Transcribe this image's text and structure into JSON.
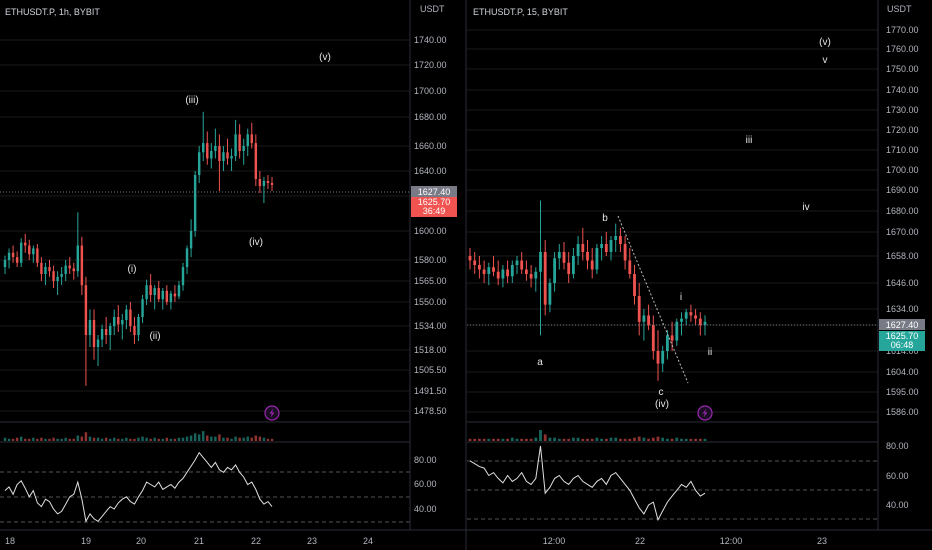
{
  "theme": {
    "background": "#000000",
    "grid": "#1a1a1a",
    "axis_text": "#b2b5be",
    "label_text": "#e6e6e6",
    "up": "#26a69a",
    "down": "#ef5350",
    "price_line": "#787b86",
    "last_price_bg": "#787b86",
    "current_price_bg_left": "#f05350",
    "current_price_bg_right": "#26a69a",
    "rsi_line": "#e0e0e0",
    "replay_icon": "#9c27b0"
  },
  "chart_data": [
    {
      "type": "candlestick",
      "symbol": "ETHUSDT.P, 1h, BYBIT",
      "currency": "USDT",
      "yticks": [
        "1740.00",
        "1720.00",
        "1700.00",
        "1680.00",
        "1660.00",
        "1640.00",
        "1615.00",
        "1600.00",
        "1580.00",
        "1565.00",
        "1550.00",
        "1534.00",
        "1518.00",
        "1505.50",
        "1491.50",
        "1478.50"
      ],
      "xticks": [
        "18",
        "19",
        "20",
        "21",
        "22",
        "23",
        "24"
      ],
      "last_price": "1627.40",
      "current_price": "1625.70",
      "countdown": "36:49",
      "wave_labels": [
        "(v)",
        "(iii)",
        "(i)",
        "(ii)",
        "(iv)"
      ],
      "rsi_ticks": [
        "80.00",
        "60.00",
        "40.00"
      ],
      "ohlc": [
        [
          1575,
          1583,
          1570,
          1580
        ],
        [
          1580,
          1588,
          1574,
          1585
        ],
        [
          1585,
          1590,
          1578,
          1582
        ],
        [
          1582,
          1586,
          1575,
          1578
        ],
        [
          1578,
          1595,
          1575,
          1592
        ],
        [
          1592,
          1598,
          1585,
          1590
        ],
        [
          1590,
          1594,
          1580,
          1584
        ],
        [
          1584,
          1590,
          1578,
          1588
        ],
        [
          1588,
          1591,
          1575,
          1578
        ],
        [
          1578,
          1582,
          1565,
          1570
        ],
        [
          1570,
          1578,
          1562,
          1575
        ],
        [
          1575,
          1580,
          1568,
          1572
        ],
        [
          1572,
          1576,
          1560,
          1565
        ],
        [
          1565,
          1572,
          1555,
          1568
        ],
        [
          1568,
          1575,
          1562,
          1570
        ],
        [
          1570,
          1580,
          1565,
          1576
        ],
        [
          1576,
          1582,
          1570,
          1574
        ],
        [
          1574,
          1578,
          1566,
          1572
        ],
        [
          1572,
          1608,
          1568,
          1590
        ],
        [
          1590,
          1596,
          1555,
          1562
        ],
        [
          1562,
          1568,
          1495,
          1528
        ],
        [
          1528,
          1545,
          1520,
          1538
        ],
        [
          1538,
          1545,
          1512,
          1520
        ],
        [
          1520,
          1528,
          1508,
          1525
        ],
        [
          1525,
          1535,
          1520,
          1532
        ],
        [
          1532,
          1540,
          1522,
          1528
        ],
        [
          1528,
          1536,
          1518,
          1534
        ],
        [
          1534,
          1545,
          1528,
          1540
        ],
        [
          1540,
          1548,
          1530,
          1535
        ],
        [
          1535,
          1542,
          1525,
          1538
        ],
        [
          1538,
          1548,
          1532,
          1545
        ],
        [
          1545,
          1550,
          1530,
          1534
        ],
        [
          1534,
          1540,
          1522,
          1528
        ],
        [
          1528,
          1542,
          1524,
          1540
        ],
        [
          1540,
          1555,
          1536,
          1552
        ],
        [
          1552,
          1566,
          1548,
          1562
        ],
        [
          1562,
          1570,
          1550,
          1555
        ],
        [
          1555,
          1562,
          1545,
          1560
        ],
        [
          1560,
          1565,
          1550,
          1552
        ],
        [
          1552,
          1560,
          1545,
          1558
        ],
        [
          1558,
          1562,
          1548,
          1550
        ],
        [
          1550,
          1558,
          1545,
          1556
        ],
        [
          1556,
          1562,
          1550,
          1554
        ],
        [
          1554,
          1565,
          1552,
          1562
        ],
        [
          1562,
          1578,
          1558,
          1575
        ],
        [
          1575,
          1590,
          1570,
          1588
        ],
        [
          1588,
          1605,
          1582,
          1600
        ],
        [
          1600,
          1640,
          1596,
          1636
        ],
        [
          1636,
          1660,
          1628,
          1655
        ],
        [
          1655,
          1684,
          1648,
          1662
        ],
        [
          1662,
          1670,
          1645,
          1650
        ],
        [
          1650,
          1662,
          1642,
          1656
        ],
        [
          1656,
          1672,
          1650,
          1660
        ],
        [
          1660,
          1668,
          1620,
          1648
        ],
        [
          1648,
          1660,
          1640,
          1655
        ],
        [
          1655,
          1665,
          1645,
          1650
        ],
        [
          1650,
          1658,
          1640,
          1652
        ],
        [
          1652,
          1678,
          1648,
          1668
        ],
        [
          1668,
          1675,
          1650,
          1656
        ],
        [
          1656,
          1665,
          1645,
          1660
        ],
        [
          1660,
          1672,
          1652,
          1668
        ],
        [
          1668,
          1676,
          1658,
          1662
        ],
        [
          1662,
          1668,
          1625,
          1632
        ],
        [
          1632,
          1640,
          1618,
          1625
        ],
        [
          1625,
          1634,
          1612,
          1630
        ],
        [
          1630,
          1636,
          1622,
          1628
        ],
        [
          1628,
          1634,
          1620,
          1626
        ]
      ],
      "rsi": [
        55,
        58,
        52,
        60,
        63,
        57,
        50,
        55,
        45,
        42,
        48,
        46,
        40,
        36,
        38,
        44,
        50,
        52,
        62,
        48,
        30,
        36,
        32,
        30,
        34,
        38,
        42,
        40,
        45,
        48,
        50,
        46,
        44,
        50,
        55,
        62,
        60,
        58,
        62,
        56,
        58,
        60,
        57,
        62,
        65,
        70,
        75,
        80,
        86,
        82,
        78,
        74,
        78,
        72,
        70,
        74,
        72,
        76,
        70,
        66,
        60,
        62,
        56,
        48,
        44,
        46,
        42
      ],
      "volume": [
        3,
        2,
        2,
        3,
        4,
        2,
        2,
        3,
        2,
        3,
        2,
        2,
        3,
        2,
        2,
        3,
        2,
        2,
        5,
        4,
        8,
        4,
        3,
        3,
        2,
        3,
        2,
        3,
        2,
        2,
        3,
        2,
        2,
        3,
        4,
        3,
        2,
        3,
        2,
        2,
        3,
        2,
        2,
        3,
        3,
        4,
        5,
        7,
        6,
        9,
        5,
        4,
        4,
        6,
        3,
        3,
        2,
        4,
        3,
        3,
        4,
        3,
        5,
        4,
        3,
        2,
        2
      ]
    },
    {
      "type": "candlestick",
      "symbol": "ETHUSDT.P, 15, BYBIT",
      "currency": "USDT",
      "yticks": [
        "1770.00",
        "1760.00",
        "1750.00",
        "1740.00",
        "1730.00",
        "1720.00",
        "1710.00",
        "1700.00",
        "1690.00",
        "1680.00",
        "1670.00",
        "1658.00",
        "1646.00",
        "1634.00",
        "1624.00",
        "1614.00",
        "1604.00",
        "1595.00",
        "1586.00"
      ],
      "xticks": [
        "12:00",
        "22",
        "12:00",
        "23"
      ],
      "last_price": "1627.40",
      "current_price": "1625.70",
      "countdown": "06:48",
      "wave_labels": [
        "(v)",
        "v",
        "iii",
        "iv",
        "b",
        "i",
        "a",
        "ii",
        "c",
        "(iv)"
      ],
      "rsi_ticks": [
        "80.00",
        "60.00",
        "40.00"
      ],
      "ohlc": [
        [
          1658,
          1662,
          1652,
          1656
        ],
        [
          1656,
          1660,
          1650,
          1654
        ],
        [
          1654,
          1658,
          1648,
          1652
        ],
        [
          1652,
          1656,
          1646,
          1650
        ],
        [
          1650,
          1655,
          1645,
          1653
        ],
        [
          1653,
          1658,
          1649,
          1651
        ],
        [
          1651,
          1656,
          1645,
          1648
        ],
        [
          1648,
          1654,
          1644,
          1652
        ],
        [
          1652,
          1656,
          1646,
          1649
        ],
        [
          1649,
          1656,
          1646,
          1654
        ],
        [
          1654,
          1658,
          1650,
          1656
        ],
        [
          1656,
          1660,
          1650,
          1652
        ],
        [
          1652,
          1656,
          1647,
          1650
        ],
        [
          1650,
          1654,
          1644,
          1648
        ],
        [
          1648,
          1653,
          1642,
          1651
        ],
        [
          1651,
          1685,
          1620,
          1660
        ],
        [
          1660,
          1666,
          1630,
          1636
        ],
        [
          1636,
          1648,
          1632,
          1646
        ],
        [
          1646,
          1660,
          1642,
          1657
        ],
        [
          1657,
          1664,
          1652,
          1660
        ],
        [
          1660,
          1665,
          1652,
          1655
        ],
        [
          1655,
          1660,
          1646,
          1650
        ],
        [
          1650,
          1662,
          1648,
          1658
        ],
        [
          1658,
          1668,
          1654,
          1664
        ],
        [
          1664,
          1672,
          1656,
          1660
        ],
        [
          1660,
          1666,
          1652,
          1656
        ],
        [
          1656,
          1662,
          1648,
          1652
        ],
        [
          1652,
          1664,
          1650,
          1662
        ],
        [
          1662,
          1668,
          1656,
          1664
        ],
        [
          1664,
          1670,
          1658,
          1660
        ],
        [
          1660,
          1668,
          1656,
          1666
        ],
        [
          1666,
          1674,
          1660,
          1668
        ],
        [
          1668,
          1672,
          1660,
          1664
        ],
        [
          1664,
          1668,
          1652,
          1656
        ],
        [
          1656,
          1662,
          1648,
          1650
        ],
        [
          1650,
          1654,
          1636,
          1640
        ],
        [
          1640,
          1646,
          1620,
          1626
        ],
        [
          1626,
          1634,
          1618,
          1630
        ],
        [
          1630,
          1636,
          1622,
          1624
        ],
        [
          1624,
          1630,
          1610,
          1614
        ],
        [
          1614,
          1622,
          1600,
          1608
        ],
        [
          1608,
          1616,
          1604,
          1614
        ],
        [
          1614,
          1622,
          1610,
          1620
        ],
        [
          1620,
          1626,
          1614,
          1618
        ],
        [
          1618,
          1628,
          1616,
          1626
        ],
        [
          1626,
          1632,
          1620,
          1628
        ],
        [
          1628,
          1634,
          1624,
          1632
        ],
        [
          1632,
          1636,
          1626,
          1630
        ],
        [
          1630,
          1634,
          1624,
          1628
        ],
        [
          1628,
          1632,
          1620,
          1624
        ],
        [
          1624,
          1630,
          1620,
          1626
        ]
      ],
      "rsi": [
        70,
        68,
        66,
        65,
        60,
        62,
        58,
        55,
        60,
        56,
        58,
        62,
        56,
        54,
        58,
        80,
        48,
        52,
        58,
        60,
        56,
        54,
        58,
        60,
        56,
        54,
        52,
        56,
        58,
        54,
        60,
        62,
        58,
        54,
        50,
        44,
        38,
        34,
        40,
        42,
        30,
        36,
        42,
        46,
        50,
        54,
        52,
        56,
        50,
        46,
        48
      ],
      "volume": [
        2,
        2,
        2,
        2,
        2,
        2,
        2,
        2,
        2,
        3,
        2,
        2,
        2,
        2,
        3,
        10,
        6,
        3,
        3,
        2,
        2,
        2,
        3,
        3,
        2,
        2,
        2,
        3,
        2,
        2,
        3,
        3,
        2,
        2,
        2,
        3,
        4,
        3,
        2,
        3,
        4,
        3,
        2,
        2,
        3,
        2,
        2,
        2,
        2,
        2,
        2
      ]
    }
  ]
}
